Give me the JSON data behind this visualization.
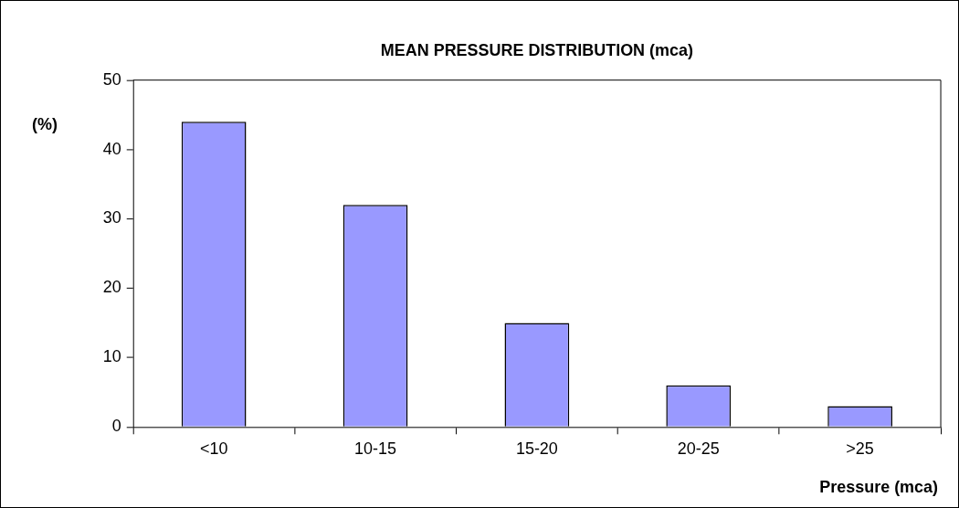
{
  "chart_data": {
    "type": "bar",
    "title": "MEAN PRESSURE DISTRIBUTION (mca)",
    "xlabel": "Pressure (mca)",
    "ylabel": "(%)",
    "categories": [
      "<10",
      "10-15",
      "15-20",
      "20-25",
      ">25"
    ],
    "values": [
      44,
      32,
      15,
      6,
      3
    ],
    "color": "#9999ff",
    "ylim": [
      0,
      50
    ],
    "yticks": [
      0,
      10,
      20,
      30,
      40,
      50
    ],
    "legend": false
  }
}
